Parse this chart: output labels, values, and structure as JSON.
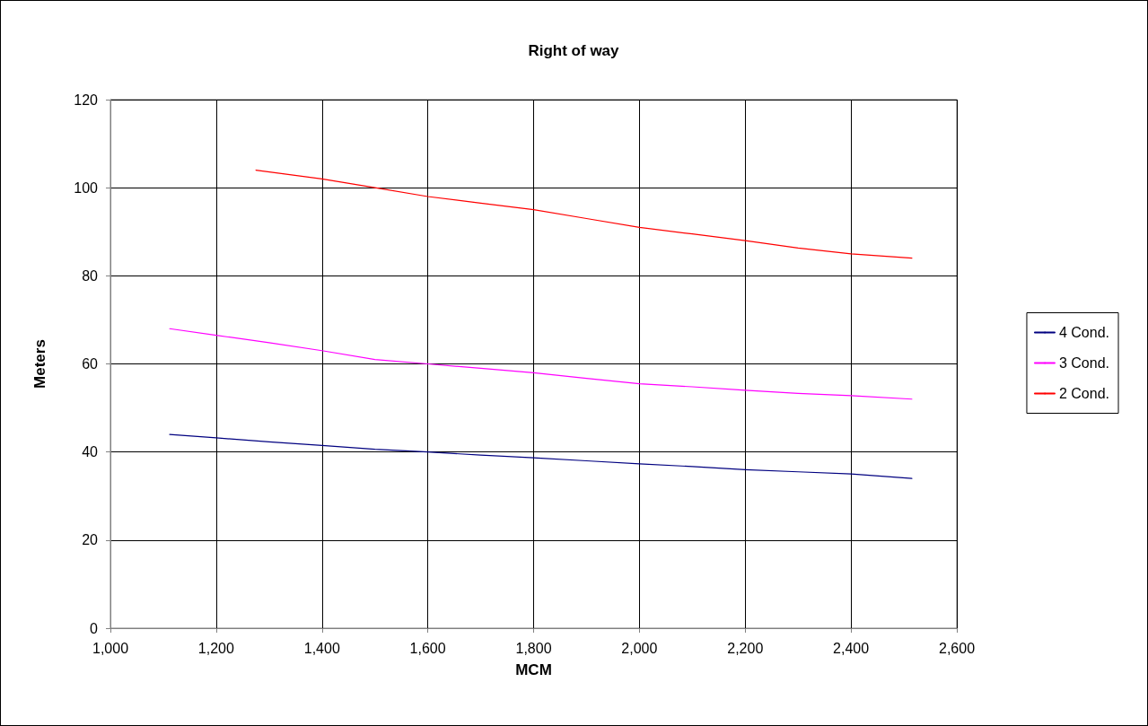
{
  "chart_data": {
    "type": "line",
    "title": "Right of way",
    "xlabel": "MCM",
    "ylabel": "Meters",
    "xlim": [
      1000,
      2600
    ],
    "xticks": [
      {
        "value": 1000,
        "label": "1,000"
      },
      {
        "value": 1200,
        "label": "1,200"
      },
      {
        "value": 1400,
        "label": "1,400"
      },
      {
        "value": 1600,
        "label": "1,600"
      },
      {
        "value": 1800,
        "label": "1,800"
      },
      {
        "value": 2000,
        "label": "2,000"
      },
      {
        "value": 2200,
        "label": "2,200"
      },
      {
        "value": 2400,
        "label": "2,400"
      },
      {
        "value": 2600,
        "label": "2,600"
      }
    ],
    "ylim": [
      0,
      120
    ],
    "yticks": [
      0,
      20,
      40,
      60,
      80,
      100,
      120
    ],
    "grid": true,
    "legend": "right",
    "marker": "none",
    "line_style": "solid",
    "series": [
      {
        "name": "4 Cond.",
        "color": "#000080",
        "x": [
          1112,
          1200,
          1300,
          1400,
          1500,
          1600,
          1700,
          1800,
          1900,
          2000,
          2100,
          2200,
          2300,
          2400,
          2515
        ],
        "values": [
          44,
          43.2,
          42.3,
          41.5,
          40.6,
          40,
          39.3,
          38.7,
          38,
          37.3,
          36.7,
          36,
          35.5,
          35,
          34
        ]
      },
      {
        "name": "3 Cond.",
        "color": "#ff00ff",
        "x": [
          1112,
          1200,
          1300,
          1400,
          1500,
          1600,
          1700,
          1800,
          1900,
          2000,
          2100,
          2200,
          2300,
          2400,
          2515
        ],
        "values": [
          68,
          66.5,
          64.8,
          63,
          61,
          60,
          59,
          58,
          56.7,
          55.5,
          54.8,
          54,
          53.3,
          52.8,
          52
        ]
      },
      {
        "name": "2 Cond.",
        "color": "#ff0000",
        "x": [
          1275,
          1400,
          1500,
          1600,
          1700,
          1800,
          1900,
          2000,
          2100,
          2200,
          2300,
          2400,
          2515
        ],
        "values": [
          104,
          102,
          100,
          98,
          96.5,
          95,
          93,
          91,
          89.5,
          88,
          86.3,
          85,
          84
        ]
      }
    ]
  }
}
